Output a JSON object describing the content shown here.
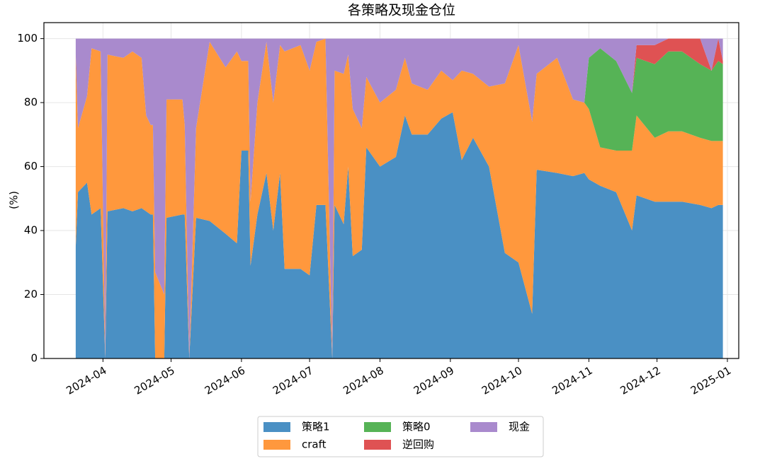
{
  "chart_data": {
    "type": "stacked-area",
    "title": "各策略及现金仓位",
    "y_label": "(%)",
    "x": [
      "2024-03-20",
      "2024-03-21",
      "2024-03-25",
      "2024-03-27",
      "2024-03-31",
      "2024-04-02",
      "2024-04-03",
      "2024-04-10",
      "2024-04-14",
      "2024-04-18",
      "2024-04-20",
      "2024-04-22",
      "2024-04-23",
      "2024-04-24",
      "2024-04-28",
      "2024-04-29",
      "2024-05-06",
      "2024-05-07",
      "2024-05-09",
      "2024-05-12",
      "2024-05-18",
      "2024-05-25",
      "2024-05-30",
      "2024-06-01",
      "2024-06-04",
      "2024-06-05",
      "2024-06-08",
      "2024-06-12",
      "2024-06-15",
      "2024-06-18",
      "2024-06-20",
      "2024-06-27",
      "2024-07-01",
      "2024-07-04",
      "2024-07-08",
      "2024-07-11",
      "2024-07-12",
      "2024-07-16",
      "2024-07-18",
      "2024-07-20",
      "2024-07-24",
      "2024-07-26",
      "2024-08-01",
      "2024-08-08",
      "2024-08-12",
      "2024-08-15",
      "2024-08-22",
      "2024-08-28",
      "2024-09-02",
      "2024-09-06",
      "2024-09-11",
      "2024-09-18",
      "2024-09-25",
      "2024-10-01",
      "2024-10-07",
      "2024-10-09",
      "2024-10-18",
      "2024-10-25",
      "2024-10-30",
      "2024-11-01",
      "2024-11-06",
      "2024-11-13",
      "2024-11-20",
      "2024-11-22",
      "2024-11-30",
      "2024-12-06",
      "2024-12-12",
      "2024-12-20",
      "2024-12-25",
      "2024-12-28",
      "2024-12-30"
    ],
    "series": [
      {
        "name": "策略1",
        "color": "#4a90c4",
        "values": [
          35,
          52,
          55,
          45,
          47,
          0,
          46,
          47,
          46,
          47,
          46,
          45,
          45,
          0,
          0,
          44,
          45,
          45,
          0,
          44,
          43,
          39,
          36,
          65,
          65,
          29,
          45,
          58,
          40,
          58,
          28,
          28,
          26,
          48,
          48,
          0,
          48,
          42,
          60,
          32,
          34,
          66,
          60,
          63,
          76,
          70,
          70,
          75,
          77,
          62,
          69,
          60,
          33,
          30,
          14,
          59,
          58,
          57,
          58,
          56,
          54,
          52,
          40,
          51,
          49,
          49,
          49,
          48,
          47,
          48,
          48
        ]
      },
      {
        "name": "craft",
        "color": "#ff983d",
        "values": [
          60,
          20,
          27,
          52,
          49,
          0,
          49,
          47,
          50,
          47,
          30,
          28,
          28,
          27,
          20,
          37,
          36,
          28,
          0,
          28,
          56,
          52,
          60,
          28,
          28,
          20,
          35,
          41,
          40,
          40,
          68,
          70,
          64,
          51,
          52,
          0,
          42,
          47,
          35,
          46,
          38,
          22,
          20,
          21,
          18,
          16,
          14,
          15,
          10,
          28,
          20,
          25,
          53,
          68,
          60,
          30,
          36,
          24,
          22,
          22,
          12,
          13,
          25,
          25,
          20,
          22,
          22,
          21,
          21,
          20,
          20
        ]
      },
      {
        "name": "策略0",
        "color": "#56b356",
        "values": [
          0,
          0,
          0,
          0,
          0,
          0,
          0,
          0,
          0,
          0,
          0,
          0,
          0,
          0,
          0,
          0,
          0,
          0,
          0,
          0,
          0,
          0,
          0,
          0,
          0,
          0,
          0,
          0,
          0,
          0,
          0,
          0,
          0,
          0,
          0,
          0,
          0,
          0,
          0,
          0,
          0,
          0,
          0,
          0,
          0,
          0,
          0,
          0,
          0,
          0,
          0,
          0,
          0,
          0,
          0,
          0,
          0,
          0,
          0,
          16,
          31,
          28,
          18,
          18,
          23,
          25,
          25,
          23,
          22,
          25,
          24
        ]
      },
      {
        "name": "逆回购",
        "color": "#df5253",
        "values": [
          0,
          0,
          0,
          0,
          0,
          0,
          0,
          0,
          0,
          0,
          0,
          0,
          0,
          0,
          0,
          0,
          0,
          0,
          0,
          0,
          0,
          0,
          0,
          0,
          0,
          0,
          0,
          0,
          0,
          0,
          0,
          0,
          0,
          0,
          0,
          0,
          0,
          0,
          0,
          0,
          0,
          0,
          0,
          0,
          0,
          0,
          0,
          0,
          0,
          0,
          0,
          0,
          0,
          0,
          0,
          0,
          0,
          0,
          0,
          0,
          0,
          0,
          0,
          4,
          6,
          4,
          4,
          8,
          0,
          7,
          1
        ]
      },
      {
        "name": "现金",
        "color": "#a98acd",
        "values": [
          5,
          28,
          18,
          3,
          4,
          100,
          5,
          6,
          4,
          6,
          24,
          27,
          27,
          73,
          80,
          19,
          19,
          27,
          100,
          28,
          1,
          9,
          4,
          7,
          7,
          51,
          20,
          1,
          20,
          2,
          4,
          2,
          10,
          1,
          0,
          100,
          10,
          11,
          5,
          22,
          28,
          12,
          20,
          16,
          6,
          14,
          16,
          10,
          13,
          10,
          11,
          15,
          14,
          2,
          26,
          11,
          6,
          19,
          20,
          6,
          3,
          7,
          17,
          2,
          2,
          0,
          0,
          0,
          10,
          0,
          7
        ]
      }
    ],
    "xlim": [
      "2024-03-06",
      "2025-01-06"
    ],
    "xticks": [
      "2024-04",
      "2024-05",
      "2024-06",
      "2024-07",
      "2024-08",
      "2024-09",
      "2024-10",
      "2024-11",
      "2024-12",
      "2025-01"
    ],
    "ylim": [
      0,
      105
    ],
    "yticks": [
      0,
      20,
      40,
      60,
      80,
      100
    ],
    "grid": true,
    "legend": "bottom"
  }
}
